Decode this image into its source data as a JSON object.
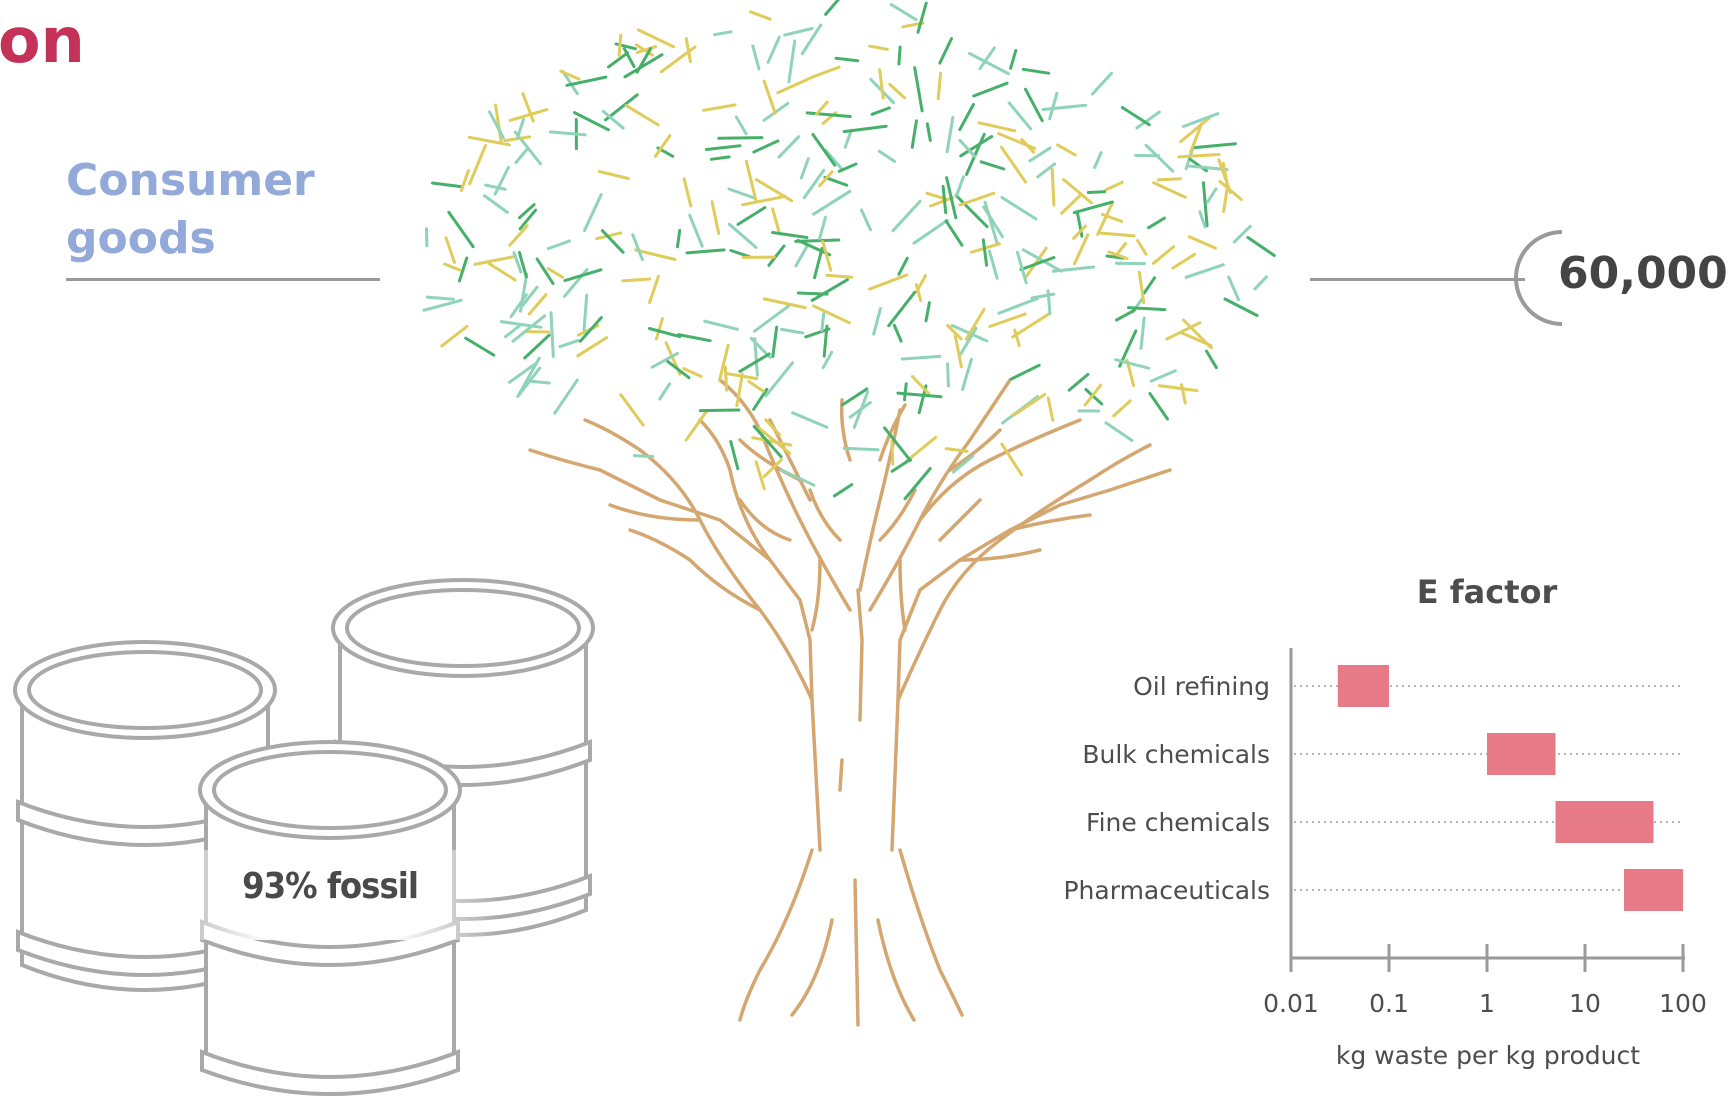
{
  "heading_fragment": "on",
  "consumer_label": "Consumer goods",
  "count_value": "60,000",
  "fossil_label": "93% fossil",
  "colors": {
    "title": "#c4325a",
    "consumer": "#93a9d9",
    "bar": "#e67a87",
    "branches": "#d4a670",
    "leaves": [
      "#e0cc5a",
      "#8fd3b8",
      "#46b06a"
    ],
    "barrel": "#a9a9a9"
  },
  "chart_data": {
    "type": "bar",
    "title": "E factor",
    "xlabel": "kg waste per kg product",
    "ylabel": "",
    "xscale": "log",
    "xlim": [
      0.01,
      100
    ],
    "xticks": [
      0.01,
      0.1,
      1,
      10,
      100
    ],
    "xtick_labels": [
      "0.01",
      "0.1",
      "1",
      "10",
      "100"
    ],
    "grid": "dotted horizontal lines per category",
    "categories": [
      "Oil refining",
      "Bulk chemicals",
      "Fine chemicals",
      "Pharmaceuticals"
    ],
    "ranges": [
      [
        0.03,
        0.1
      ],
      [
        1,
        5
      ],
      [
        5,
        50
      ],
      [
        25,
        100
      ]
    ]
  }
}
